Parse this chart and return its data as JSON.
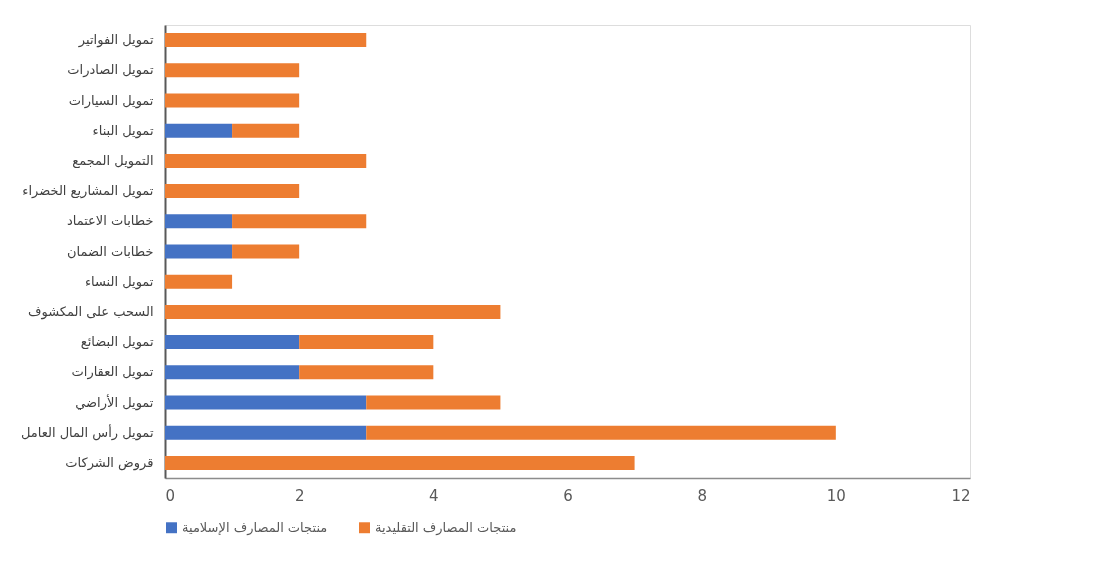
{
  "chart_data": {
    "type": "bar",
    "orientation": "horizontal",
    "stacked": true,
    "categories": [
      "تمويل الفواتير",
      "تمويل الصادرات",
      "تمويل السيارات",
      "تمويل البناء",
      "التمويل المجمع",
      "تمويل المشاريع الخضراء",
      "خطابات الاعتماد",
      "خطابات الضمان",
      "تمويل النساء",
      "السحب على المكشوف",
      "تمويل البضائع",
      "تمويل العقارات",
      "تمويل الأراضي",
      "تمويل رأس المال العامل",
      "قروض الشركات"
    ],
    "series": [
      {
        "name": "منتجات المصارف الإسلامية",
        "color": "#4472c4",
        "values": [
          0,
          0,
          0,
          1,
          0,
          0,
          1,
          1,
          0,
          0,
          2,
          2,
          3,
          3,
          0
        ]
      },
      {
        "name": "منتجات المصارف التقليدية",
        "color": "#ed7d31",
        "values": [
          3,
          2,
          2,
          1,
          3,
          2,
          2,
          1,
          1,
          5,
          2,
          2,
          2,
          7,
          7
        ]
      }
    ],
    "xlim": [
      0,
      12
    ],
    "xticks": [
      0,
      2,
      4,
      6,
      8,
      10,
      12
    ],
    "grid": false,
    "legend": "bottom"
  }
}
